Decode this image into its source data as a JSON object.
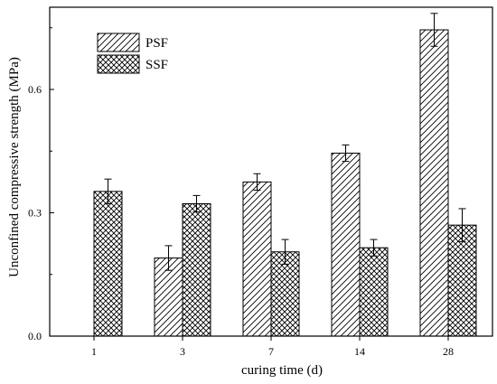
{
  "chart_data": {
    "type": "bar",
    "categories": [
      "1",
      "3",
      "7",
      "14",
      "28"
    ],
    "series": [
      {
        "name": "PSF",
        "pattern": "diagonal-hatch",
        "values": [
          null,
          0.19,
          0.375,
          0.445,
          0.745
        ],
        "errors": [
          null,
          0.03,
          0.02,
          0.02,
          0.04
        ]
      },
      {
        "name": "SSF",
        "pattern": "crosshatch",
        "values": [
          0.352,
          0.322,
          0.205,
          0.215,
          0.27
        ],
        "errors": [
          0.03,
          0.02,
          0.03,
          0.02,
          0.04
        ]
      }
    ],
    "xlabel": "curing time (d)",
    "ylabel": "Unconfined compressive strength (MPa)",
    "ylim": [
      0,
      0.8
    ],
    "yticks": [
      "0.0",
      "0.3",
      "0.6"
    ],
    "ytick_values": [
      0,
      0.3,
      0.6
    ],
    "legend_position": "top-left",
    "grid": false
  }
}
